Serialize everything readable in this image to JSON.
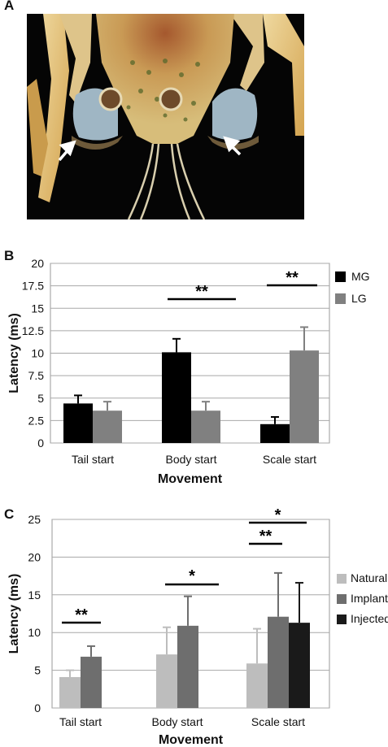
{
  "panels": {
    "a": {
      "letter": "A"
    },
    "b": {
      "letter": "B"
    },
    "c": {
      "letter": "C"
    }
  },
  "chart_data": [
    {
      "type": "bar",
      "xlabel": "Movement",
      "ylabel": "Latency (ms)",
      "ylim": [
        0,
        20
      ],
      "yticks": [
        "0",
        "2.5",
        "5",
        "7.5",
        "10",
        "12.5",
        "15",
        "17.5",
        "20"
      ],
      "grid": true,
      "legend_position": "right",
      "categories": [
        "Tail start",
        "Body start",
        "Scale start"
      ],
      "series": [
        {
          "name": "MG",
          "color": "#000000",
          "values": [
            4.4,
            10.1,
            2.1
          ],
          "errors": [
            0.9,
            1.5,
            0.8
          ]
        },
        {
          "name": "LG",
          "color": "#808080",
          "values": [
            3.6,
            3.6,
            10.3
          ],
          "errors": [
            1.0,
            1.0,
            2.6
          ]
        }
      ],
      "significance": [
        {
          "category": 1,
          "label": "**"
        },
        {
          "category": 2,
          "label": "**"
        }
      ]
    },
    {
      "type": "bar",
      "xlabel": "Movement",
      "ylabel": "Latency (ms)",
      "ylim": [
        0,
        25
      ],
      "yticks": [
        "0",
        "5",
        "10",
        "15",
        "20",
        "25"
      ],
      "grid": true,
      "legend_position": "right",
      "categories": [
        "Tail start",
        "Body start",
        "Scale start"
      ],
      "series": [
        {
          "name": "Natural",
          "color": "#bdbdbd",
          "values": [
            4.1,
            7.1,
            5.9
          ],
          "errors": [
            0.9,
            3.6,
            4.6
          ]
        },
        {
          "name": "Implant",
          "color": "#6e6e6e",
          "values": [
            6.8,
            10.9,
            12.1
          ],
          "errors": [
            1.4,
            3.9,
            5.8
          ]
        },
        {
          "name": "Injected",
          "color": "#1a1a1a",
          "values": [
            null,
            null,
            11.3
          ],
          "errors": [
            null,
            null,
            5.3
          ]
        }
      ],
      "significance": [
        {
          "label": "**"
        },
        {
          "label": "*"
        },
        {
          "label": "**"
        },
        {
          "label": "*"
        }
      ]
    }
  ]
}
